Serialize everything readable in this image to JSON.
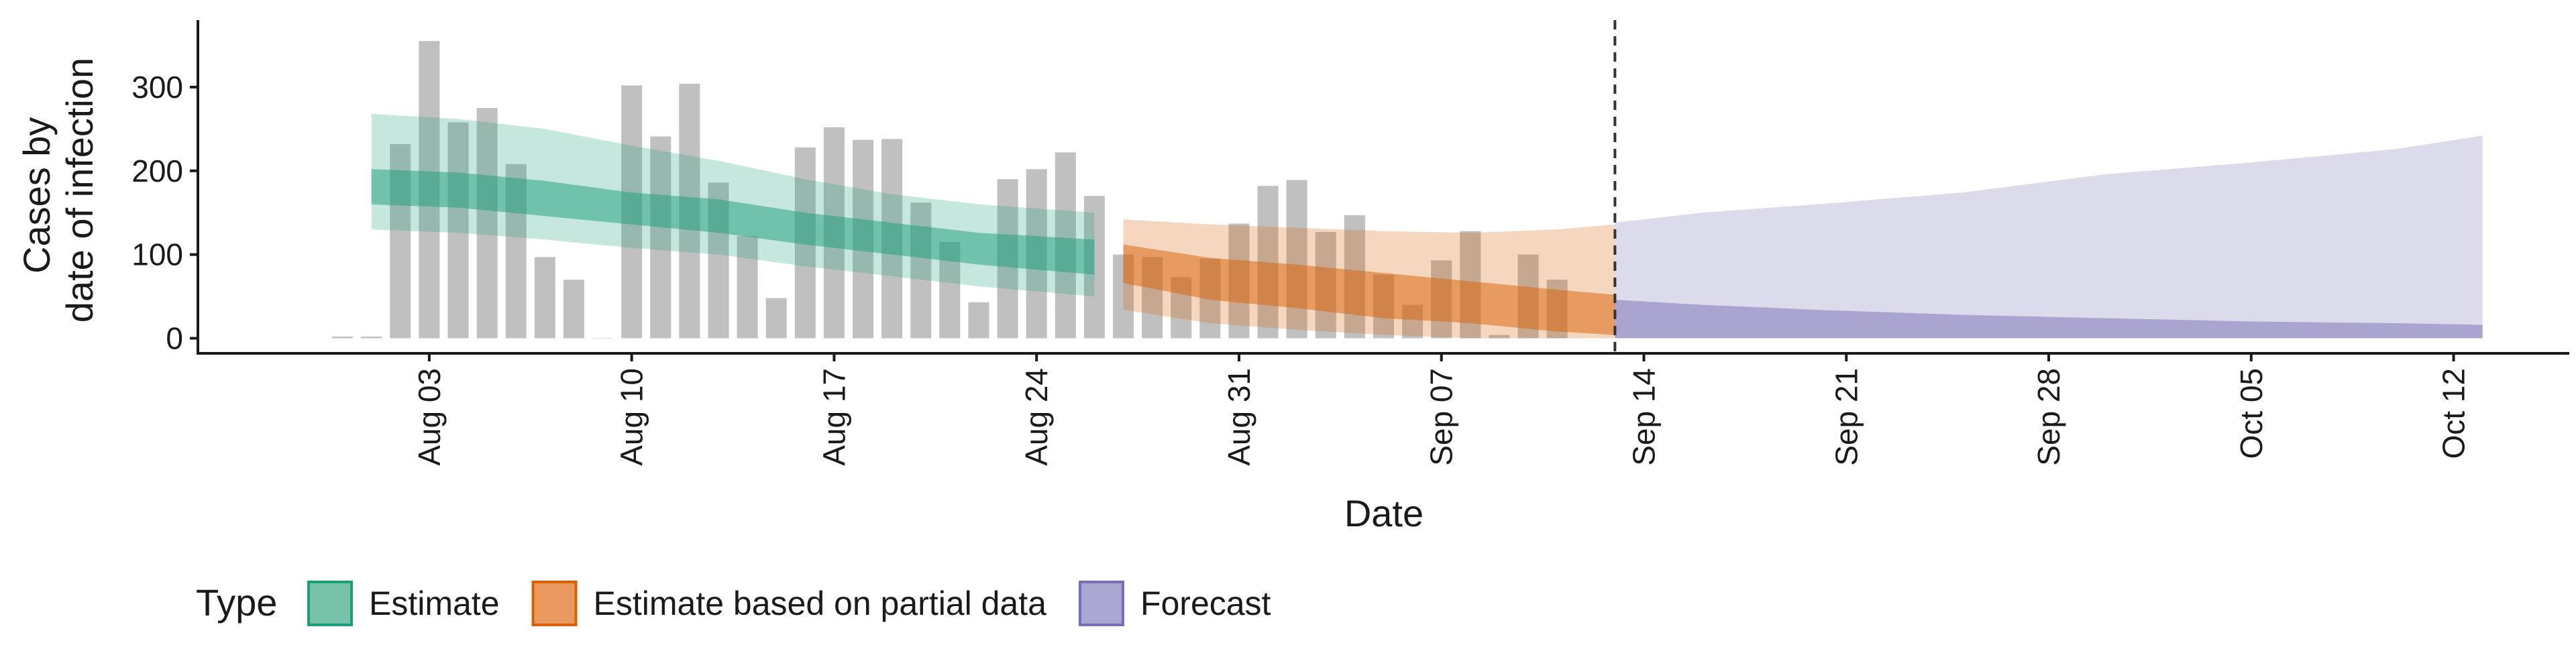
{
  "chart_data": {
    "type": "area",
    "xlabel": "Date",
    "ylabel_lines": [
      "Cases by",
      "date of infection"
    ],
    "ylim": [
      -18,
      380
    ],
    "xlim": [
      "2021-07-26",
      "2021-10-16"
    ],
    "x_ticks": [
      {
        "date": "2021-08-03",
        "label": "Aug 03"
      },
      {
        "date": "2021-08-10",
        "label": "Aug 10"
      },
      {
        "date": "2021-08-17",
        "label": "Aug 17"
      },
      {
        "date": "2021-08-24",
        "label": "Aug 24"
      },
      {
        "date": "2021-08-31",
        "label": "Aug 31"
      },
      {
        "date": "2021-09-07",
        "label": "Sep 07"
      },
      {
        "date": "2021-09-14",
        "label": "Sep 14"
      },
      {
        "date": "2021-09-21",
        "label": "Sep 21"
      },
      {
        "date": "2021-09-28",
        "label": "Sep 28"
      },
      {
        "date": "2021-10-05",
        "label": "Oct 05"
      },
      {
        "date": "2021-10-12",
        "label": "Oct 12"
      }
    ],
    "y_ticks": [
      0,
      100,
      200,
      300
    ],
    "reference_line_date": "2021-09-13",
    "bars": {
      "start_date": "2021-07-31",
      "end_date": "2021-09-13",
      "values": [
        2,
        2,
        232,
        355,
        258,
        275,
        208,
        97,
        70,
        0,
        302,
        241,
        304,
        186,
        122,
        48,
        228,
        252,
        237,
        238,
        162,
        115,
        43,
        190,
        202,
        222,
        170,
        100,
        97,
        73,
        95,
        137,
        182,
        189,
        127,
        147,
        76,
        40,
        93,
        128,
        4,
        100,
        70
      ]
    },
    "series": [
      {
        "name": "Estimate",
        "color": "#1b9e77",
        "dates": [
          "2021-08-01",
          "2021-08-04",
          "2021-08-07",
          "2021-08-10",
          "2021-08-13",
          "2021-08-16",
          "2021-08-19",
          "2021-08-22",
          "2021-08-26"
        ],
        "ci90_lower": [
          130,
          126,
          118,
          108,
          100,
          86,
          74,
          62,
          50
        ],
        "ci90_upper": [
          268,
          262,
          250,
          230,
          212,
          190,
          172,
          160,
          150
        ],
        "ci50_lower": [
          160,
          156,
          146,
          136,
          126,
          112,
          100,
          88,
          76
        ],
        "ci50_upper": [
          202,
          198,
          188,
          174,
          166,
          150,
          138,
          126,
          118
        ]
      },
      {
        "name": "Estimate based on partial data",
        "color": "#d95f02",
        "dates": [
          "2021-08-27",
          "2021-08-30",
          "2021-09-02",
          "2021-09-05",
          "2021-09-08",
          "2021-09-11",
          "2021-09-13"
        ],
        "ci90_lower": [
          34,
          18,
          10,
          4,
          0,
          0,
          0
        ],
        "ci90_upper": [
          142,
          136,
          132,
          128,
          126,
          130,
          136
        ],
        "ci50_lower": [
          66,
          46,
          36,
          24,
          18,
          8,
          4
        ],
        "ci50_upper": [
          112,
          96,
          88,
          78,
          68,
          58,
          52
        ]
      },
      {
        "name": "Forecast",
        "color": "#7570b3",
        "dates": [
          "2021-09-13",
          "2021-09-16",
          "2021-09-20",
          "2021-09-25",
          "2021-09-30",
          "2021-10-05",
          "2021-10-10",
          "2021-10-13"
        ],
        "ci90_lower": [
          0,
          0,
          0,
          0,
          0,
          0,
          0,
          0
        ],
        "ci90_upper": [
          138,
          150,
          160,
          174,
          196,
          210,
          226,
          242
        ],
        "ci50_lower": [
          0,
          0,
          0,
          0,
          0,
          0,
          0,
          0
        ],
        "ci50_upper": [
          46,
          40,
          34,
          28,
          24,
          20,
          18,
          16
        ]
      }
    ],
    "legend": {
      "title": "Type",
      "placement": "bottom-left",
      "items": [
        {
          "label": "Estimate",
          "fill": "#76c3a9",
          "stroke": "#1b9e77"
        },
        {
          "label": "Estimate based on partial data",
          "fill": "#ea9a5e",
          "stroke": "#d95f02"
        },
        {
          "label": "Forecast",
          "fill": "#aaa7d3",
          "stroke": "#7570b3"
        }
      ]
    },
    "colors": {
      "bar": "#bdbdbd",
      "axis": "#1a1a1a",
      "reference_line": "#333333"
    },
    "grid": false
  }
}
